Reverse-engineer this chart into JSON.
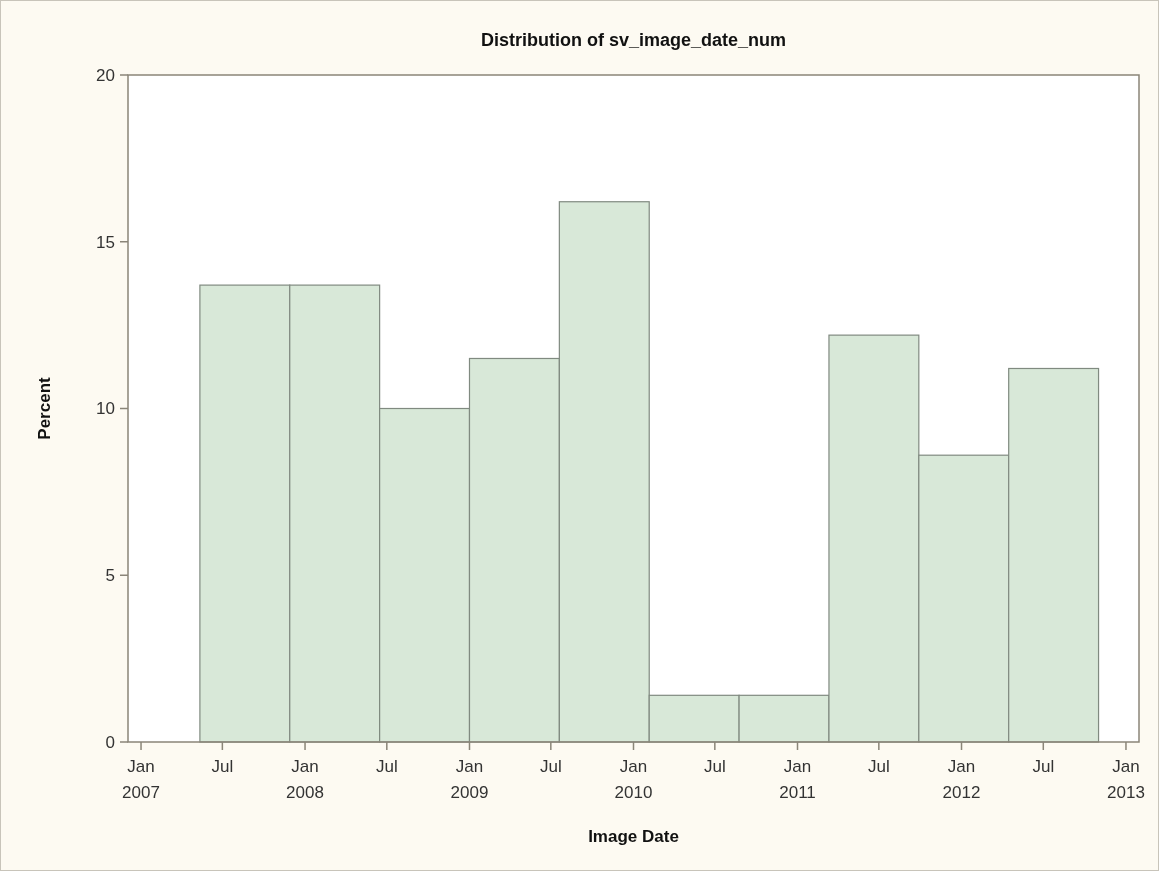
{
  "chart_data": {
    "type": "histogram",
    "title": "Distribution of sv_image_date_num",
    "xlabel": "Image Date",
    "ylabel": "Percent",
    "bins": [
      "2007-05-12",
      "2007-11-28",
      "2008-06-15",
      "2009-01-01",
      "2009-07-20",
      "2010-02-05",
      "2010-08-24",
      "2011-03-12",
      "2011-09-28",
      "2012-04-15",
      "2012-11-01"
    ],
    "values": [
      13.7,
      13.7,
      10.0,
      11.5,
      16.2,
      1.4,
      1.4,
      12.2,
      8.6,
      11.2
    ],
    "color": "#d8e8d8",
    "xlim": [
      "2006-12-03",
      "2013-01-30"
    ],
    "xticks": [
      {
        "value": "2007-01-01",
        "label": "Jan\n2007"
      },
      {
        "value": "2007-07-01",
        "label": "Jul"
      },
      {
        "value": "2008-01-01",
        "label": "Jan\n2008"
      },
      {
        "value": "2008-07-01",
        "label": "Jul"
      },
      {
        "value": "2009-01-01",
        "label": "Jan\n2009"
      },
      {
        "value": "2009-07-01",
        "label": "Jul"
      },
      {
        "value": "2010-01-01",
        "label": "Jan\n2010"
      },
      {
        "value": "2010-07-01",
        "label": "Jul"
      },
      {
        "value": "2011-01-01",
        "label": "Jan\n2011"
      },
      {
        "value": "2011-07-01",
        "label": "Jul"
      },
      {
        "value": "2012-01-01",
        "label": "Jan\n2012"
      },
      {
        "value": "2012-07-01",
        "label": "Jul"
      },
      {
        "value": "2013-01-01",
        "label": "Jan\n2013"
      }
    ],
    "ylim": [
      0,
      20
    ],
    "yticks": [
      0,
      5,
      10,
      15,
      20
    ],
    "grid": false
  }
}
